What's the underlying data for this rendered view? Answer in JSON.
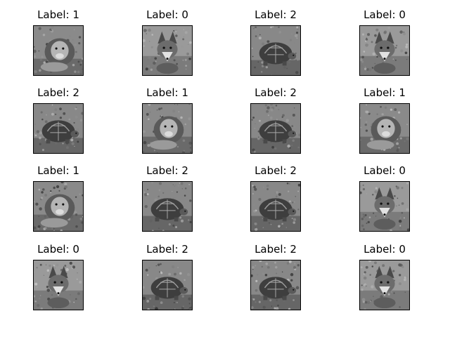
{
  "figure": {
    "rows": 4,
    "cols": 4,
    "panels": [
      {
        "title": "Label: 1",
        "subject": "lion"
      },
      {
        "title": "Label: 0",
        "subject": "fox"
      },
      {
        "title": "Label: 2",
        "subject": "turtle"
      },
      {
        "title": "Label: 0",
        "subject": "fox"
      },
      {
        "title": "Label: 2",
        "subject": "turtle"
      },
      {
        "title": "Label: 1",
        "subject": "lion"
      },
      {
        "title": "Label: 2",
        "subject": "turtle"
      },
      {
        "title": "Label: 1",
        "subject": "lion"
      },
      {
        "title": "Label: 1",
        "subject": "lion"
      },
      {
        "title": "Label: 2",
        "subject": "turtle"
      },
      {
        "title": "Label: 2",
        "subject": "turtle"
      },
      {
        "title": "Label: 0",
        "subject": "fox"
      },
      {
        "title": "Label: 0",
        "subject": "fox"
      },
      {
        "title": "Label: 2",
        "subject": "turtle"
      },
      {
        "title": "Label: 2",
        "subject": "turtle"
      },
      {
        "title": "Label: 0",
        "subject": "fox"
      }
    ]
  }
}
